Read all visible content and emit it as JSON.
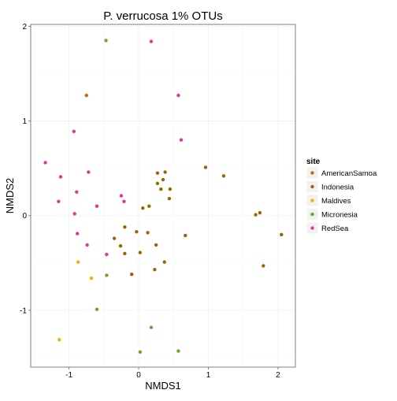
{
  "chart_data": {
    "type": "scatter",
    "title": "P. verrucosa 1% OTUs",
    "xlabel": "NMDS1",
    "ylabel": "NMDS2",
    "xlim": [
      -1.55,
      2.25
    ],
    "ylim": [
      -1.6,
      2.02
    ],
    "x_ticks": [
      -1,
      0,
      1,
      2
    ],
    "y_ticks": [
      -1,
      0,
      1,
      2
    ],
    "x_tick_labels": [
      "-1",
      "0",
      "1",
      "2"
    ],
    "y_tick_labels": [
      "-1",
      "0",
      "1",
      "2"
    ],
    "grid": true,
    "background": "#ffffff",
    "gridline_color": "#f0f0f0",
    "legend": {
      "title": "site",
      "position": "right"
    },
    "series": [
      {
        "name": "AmericanSamoa",
        "color": "#cc6600",
        "points": [
          [
            -0.75,
            1.27
          ]
        ]
      },
      {
        "name": "Indonesia",
        "color": "#996600",
        "points": [
          [
            0.27,
            0.45
          ],
          [
            0.38,
            0.46
          ],
          [
            0.96,
            0.51
          ],
          [
            1.22,
            0.42
          ],
          [
            0.35,
            0.38
          ],
          [
            0.27,
            0.34
          ],
          [
            0.32,
            0.28
          ],
          [
            0.45,
            0.28
          ],
          [
            0.44,
            0.18
          ],
          [
            0.15,
            0.1
          ],
          [
            0.06,
            0.08
          ],
          [
            1.68,
            0.01
          ],
          [
            1.74,
            0.03
          ],
          [
            -0.35,
            -0.24
          ],
          [
            -0.2,
            -0.12
          ],
          [
            -0.03,
            -0.17
          ],
          [
            0.13,
            -0.18
          ],
          [
            0.67,
            -0.21
          ],
          [
            2.05,
            -0.2
          ],
          [
            -0.26,
            -0.32
          ],
          [
            0.25,
            -0.31
          ],
          [
            -0.2,
            -0.4
          ],
          [
            0.02,
            -0.39
          ],
          [
            0.37,
            -0.49
          ],
          [
            1.79,
            -0.53
          ],
          [
            0.23,
            -0.57
          ],
          [
            -0.1,
            -0.62
          ]
        ]
      },
      {
        "name": "Maldives",
        "color": "#e6b800",
        "points": [
          [
            -0.87,
            -0.49
          ],
          [
            -0.68,
            -0.66
          ],
          [
            -1.14,
            -1.31
          ]
        ]
      },
      {
        "name": "Micronesia",
        "color": "#66aa22",
        "points": [
          [
            -0.47,
            1.85
          ],
          [
            -0.46,
            -0.63
          ],
          [
            -0.6,
            -0.99
          ],
          [
            0.18,
            -1.18
          ],
          [
            0.02,
            -1.44
          ],
          [
            0.57,
            -1.43
          ]
        ]
      },
      {
        "name": "RedSea",
        "color": "#e6339a",
        "points": [
          [
            0.18,
            1.84
          ],
          [
            0.57,
            1.27
          ],
          [
            -0.93,
            0.89
          ],
          [
            0.61,
            0.8
          ],
          [
            -1.34,
            0.56
          ],
          [
            -0.72,
            0.46
          ],
          [
            -1.12,
            0.41
          ],
          [
            -0.89,
            0.25
          ],
          [
            -0.25,
            0.21
          ],
          [
            -0.21,
            0.15
          ],
          [
            -1.15,
            0.15
          ],
          [
            -0.6,
            0.1
          ],
          [
            -0.92,
            0.02
          ],
          [
            -0.88,
            -0.19
          ],
          [
            -0.74,
            -0.31
          ],
          [
            -0.46,
            -0.41
          ]
        ]
      }
    ]
  }
}
